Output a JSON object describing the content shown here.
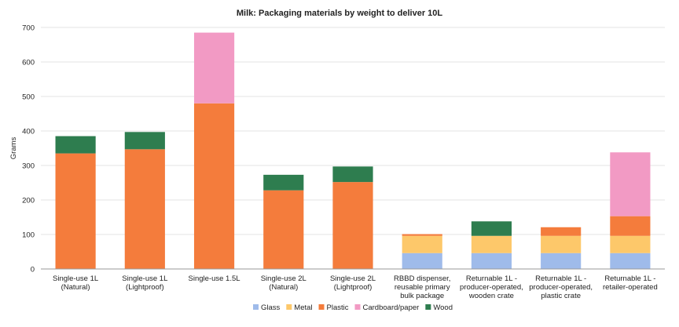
{
  "chart_data": {
    "type": "bar",
    "stacked": true,
    "title": "Milk: Packaging materials by weight to deliver 10L",
    "xlabel": "",
    "ylabel": "Grams",
    "ylim": [
      0,
      700
    ],
    "yticks": [
      0,
      100,
      200,
      300,
      400,
      500,
      600,
      700
    ],
    "grid": true,
    "legend_position": "bottom",
    "categories": [
      [
        "Single-use 1L",
        "(Natural)"
      ],
      [
        "Single-use 1L",
        "(Lightproof)"
      ],
      [
        "Single-use 1.5L"
      ],
      [
        "Single-use 2L",
        "(Natural)"
      ],
      [
        "Single-use 2L",
        "(Lightproof)"
      ],
      [
        "RBBD dispenser,",
        "reusable primary",
        "bulk package"
      ],
      [
        "Returnable 1L -",
        "producer-operated,",
        "wooden crate"
      ],
      [
        "Returnable 1L -",
        "producer-operated,",
        "plastic crate"
      ],
      [
        "Returnable 1L -",
        "retailer-operated"
      ]
    ],
    "series": [
      {
        "name": "Glass",
        "color": "#9fbbea",
        "values": [
          0,
          0,
          0,
          0,
          0,
          46,
          46,
          46,
          46
        ]
      },
      {
        "name": "Metal",
        "color": "#fdc86a",
        "values": [
          0,
          0,
          0,
          0,
          0,
          50,
          50,
          50,
          50
        ]
      },
      {
        "name": "Plastic",
        "color": "#f47c3c",
        "values": [
          335,
          347,
          480,
          228,
          252,
          5,
          0,
          25,
          57
        ]
      },
      {
        "name": "Cardboard/paper",
        "color": "#f29ac4",
        "values": [
          0,
          0,
          205,
          0,
          0,
          0,
          0,
          0,
          185
        ]
      },
      {
        "name": "Wood",
        "color": "#2e7d4f",
        "values": [
          50,
          50,
          0,
          45,
          45,
          0,
          42,
          0,
          0
        ]
      }
    ]
  }
}
